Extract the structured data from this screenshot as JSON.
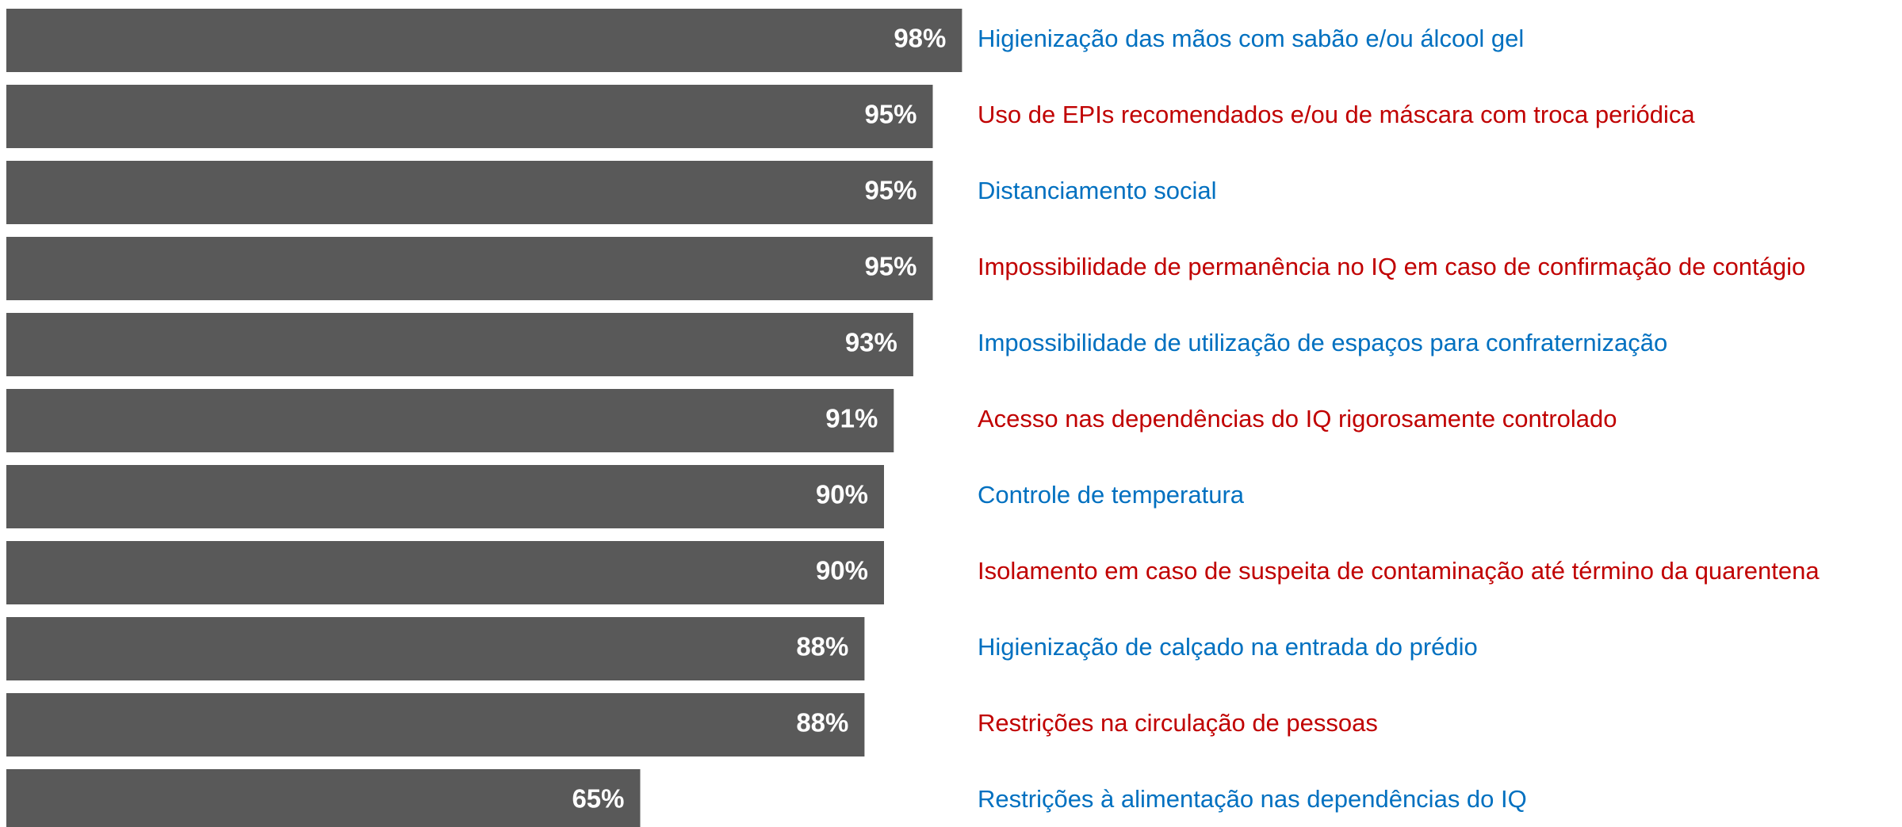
{
  "chart_data": {
    "type": "bar",
    "orientation": "horizontal",
    "categories": [
      "Higienização das mãos com sabão e/ou álcool gel",
      "Uso de EPIs recomendados e/ou de máscara com troca periódica",
      "Distanciamento social",
      "Impossibilidade de permanência no IQ em caso de confirmação de contágio",
      "Impossibilidade de utilização de espaços para confraternização",
      "Acesso nas dependências do IQ rigorosamente controlado",
      "Controle de temperatura",
      "Isolamento em caso de suspeita de contaminação até término da quarentena",
      "Higienização de calçado na entrada do prédio",
      "Restrições na circulação de pessoas",
      "Restrições à alimentação nas dependências do IQ"
    ],
    "values": [
      98,
      95,
      95,
      95,
      93,
      91,
      90,
      90,
      88,
      88,
      65
    ],
    "value_labels": [
      "98%",
      "95%",
      "95%",
      "95%",
      "93%",
      "91%",
      "90%",
      "90%",
      "88%",
      "88%",
      "65%"
    ],
    "color": "#595959",
    "category_colors": [
      "#0070c0",
      "#c00000",
      "#0070c0",
      "#c00000",
      "#0070c0",
      "#c00000",
      "#0070c0",
      "#c00000",
      "#0070c0",
      "#c00000",
      "#0070c0"
    ],
    "xlim": [
      0,
      100
    ]
  }
}
